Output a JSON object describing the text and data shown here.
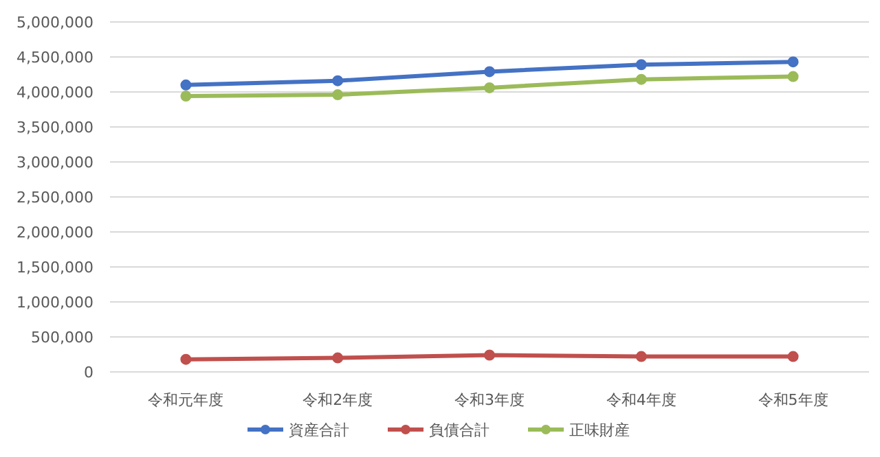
{
  "chart_data": {
    "type": "line",
    "categories": [
      "令和元年度",
      "令和2年度",
      "令和3年度",
      "令和4年度",
      "令和5年度"
    ],
    "series": [
      {
        "name": "資産合計",
        "color": "#4472c4",
        "values": [
          4100000,
          4160000,
          4290000,
          4390000,
          4430000
        ]
      },
      {
        "name": "負債合計",
        "color": "#c0504d",
        "values": [
          180000,
          200000,
          240000,
          220000,
          220000
        ]
      },
      {
        "name": "正味財産",
        "color": "#9bbb59",
        "values": [
          3940000,
          3960000,
          4060000,
          4180000,
          4220000
        ]
      }
    ],
    "ylim": [
      0,
      5000000
    ],
    "yticks": [
      0,
      {
        "value": 500000,
        "label": "500,000"
      },
      {
        "value": 1000000,
        "label": "1,000,000"
      },
      {
        "value": 1500000,
        "label": "1,500,000"
      },
      {
        "value": 2000000,
        "label": "2,000,000"
      },
      {
        "value": 2500000,
        "label": "2,500,000"
      },
      {
        "value": 3000000,
        "label": "3,000,000"
      },
      {
        "value": 3500000,
        "label": "3,500,000"
      },
      {
        "value": 4000000,
        "label": "4,000,000"
      },
      {
        "value": 4500000,
        "label": "4,500,000"
      },
      {
        "value": 5000000,
        "label": "5,000,000"
      }
    ],
    "grid": "y",
    "legend": "bottom",
    "marker": "circle",
    "line_style": "solid"
  }
}
